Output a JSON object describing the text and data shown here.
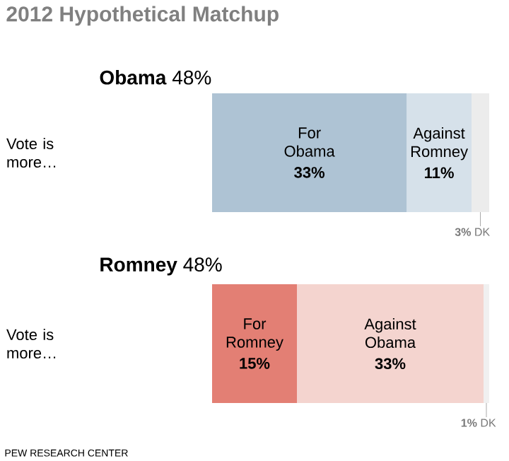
{
  "chart_data": [
    {
      "type": "bar",
      "orientation": "horizontal",
      "stacked": true,
      "title": "2012 Hypothetical Matchup",
      "subtitle": "**Obama** 48%",
      "categories": [
        "Vote is more…"
      ],
      "tick_labels": "y",
      "series": [
        {
          "name": "For Obama",
          "color": "#aec3d4",
          "values": [
            33
          ],
          "value_labels": [
            "33%"
          ]
        },
        {
          "name": "Against Romney",
          "color": "#d6e1ea",
          "values": [
            11
          ],
          "value_labels": [
            "11%"
          ]
        },
        {
          "name": "DK",
          "color": "#ececec",
          "values": [
            3
          ],
          "value_labels": [
            "3%"
          ]
        }
      ]
    },
    {
      "type": "bar",
      "orientation": "horizontal",
      "stacked": true,
      "title": "**Romney** 48%",
      "categories": [
        "Vote is more…"
      ],
      "tick_labels": "y",
      "annotations": [
        "PEW RESEARCH CENTER"
      ],
      "series": [
        {
          "name": "For Romney",
          "color": "#e37f74",
          "values": [
            15
          ],
          "value_labels": [
            "15%"
          ]
        },
        {
          "name": "Against Obama",
          "color": "#f4d4cf",
          "values": [
            33
          ],
          "value_labels": [
            "33%"
          ]
        },
        {
          "name": "DK",
          "color": "#f0f0f0",
          "values": [
            1
          ],
          "value_labels": [
            "1%"
          ]
        }
      ]
    }
  ]
}
